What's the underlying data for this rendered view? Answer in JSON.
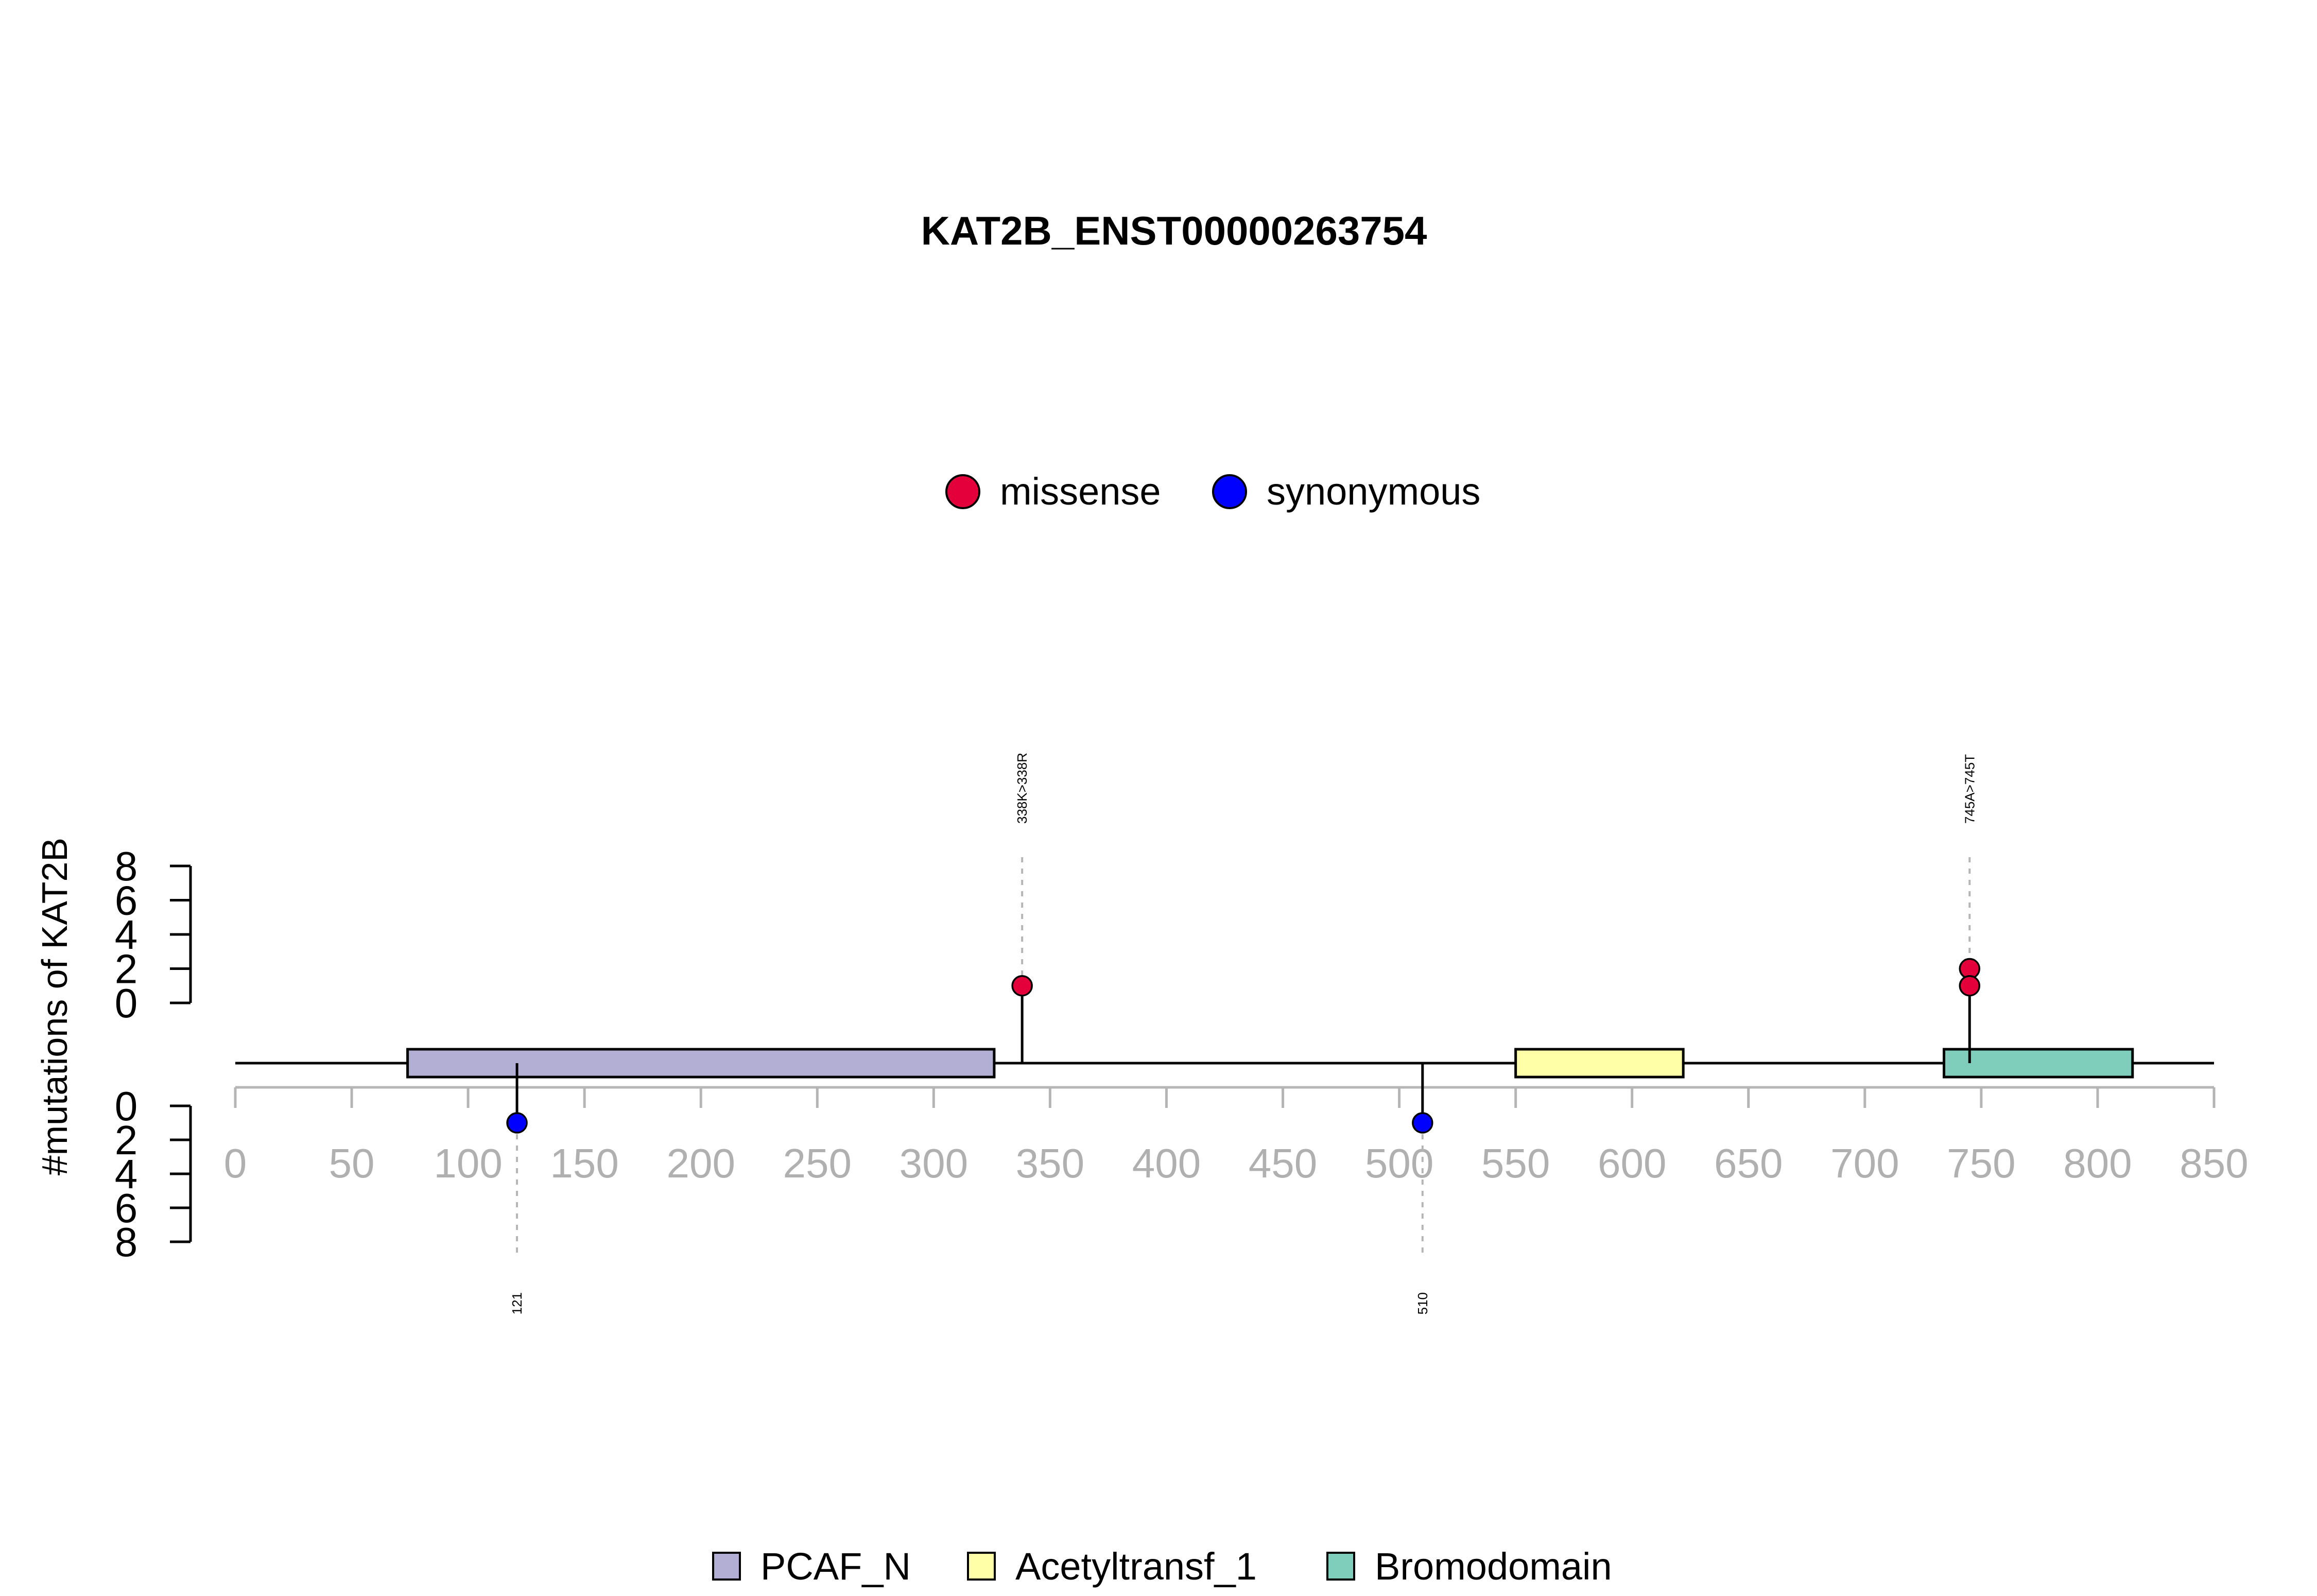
{
  "chart_data": {
    "type": "lollipop",
    "title": "KAT2B_ENST00000263754",
    "ylabel": "#mutations of KAT2B",
    "xlim": [
      0,
      850
    ],
    "x_ticks": [
      0,
      50,
      100,
      150,
      200,
      250,
      300,
      350,
      400,
      450,
      500,
      550,
      600,
      650,
      700,
      750,
      800,
      850
    ],
    "y_ticks": [
      0,
      2,
      4,
      6,
      8
    ],
    "ylim": [
      0,
      8
    ],
    "mutation_legend": [
      {
        "name": "missense",
        "color": "#e4003a"
      },
      {
        "name": "synonymous",
        "color": "#0000ff"
      }
    ],
    "domains": [
      {
        "name": "PCAF_N",
        "start": 74,
        "end": 326,
        "color": "#b3aed3"
      },
      {
        "name": "Acetyltransf_1",
        "start": 550,
        "end": 622,
        "color": "#ffffa8"
      },
      {
        "name": "Bromodomain",
        "start": 734,
        "end": 815,
        "color": "#7fcdbb"
      }
    ],
    "mutations": [
      {
        "position": 338,
        "count": 1,
        "type": "missense",
        "side": "top",
        "label": "338K>338R"
      },
      {
        "position": 745,
        "count": 2,
        "type": "missense",
        "side": "top",
        "label": "745A>745T"
      },
      {
        "position": 121,
        "count": 1,
        "type": "synonymous",
        "side": "bottom",
        "label": "121"
      },
      {
        "position": 510,
        "count": 1,
        "type": "synonymous",
        "side": "bottom",
        "label": "510"
      }
    ]
  }
}
